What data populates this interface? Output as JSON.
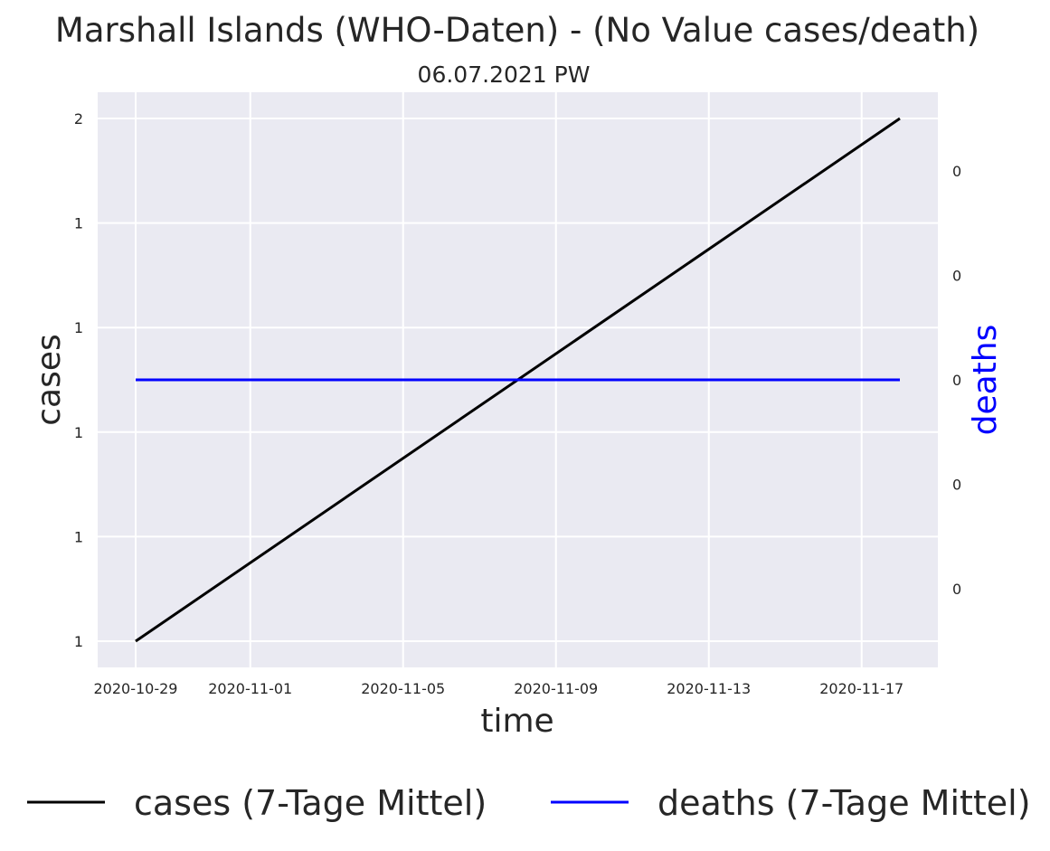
{
  "chart_data": {
    "type": "line",
    "title": "Marshall Islands (WHO-Daten) - (No Value cases/death)",
    "subtitle": "06.07.2021 PW",
    "xlabel": "time",
    "ylabel": "cases",
    "ylabel_right": "deaths",
    "x_ticks": [
      "2020-10-29",
      "2020-11-01",
      "2020-11-05",
      "2020-11-09",
      "2020-11-13",
      "2020-11-17"
    ],
    "y_ticks_left": [
      "1",
      "1",
      "1",
      "1",
      "1",
      "2"
    ],
    "y_ticks_right": [
      "0",
      "0",
      "0",
      "0",
      "0"
    ],
    "x_range": [
      "2020-10-28",
      "2020-11-19"
    ],
    "grid": true,
    "legend_placement": "bottom-center",
    "series": [
      {
        "name": "cases (7-Tage Mittel)",
        "axis": "left",
        "color": "#000000",
        "points": [
          {
            "x": "2020-10-29",
            "y": 1.0
          },
          {
            "x": "2020-11-18",
            "y": 2.0
          }
        ]
      },
      {
        "name": "deaths (7-Tage Mittel)",
        "axis": "right",
        "color": "#0000ff",
        "points": [
          {
            "x": "2020-10-29",
            "y": 0.0
          },
          {
            "x": "2020-11-18",
            "y": 0.0
          }
        ]
      }
    ],
    "colors": {
      "plot_background": "#eaeaf2",
      "grid": "#ffffff",
      "right_axis_label": "#0000ff"
    }
  }
}
